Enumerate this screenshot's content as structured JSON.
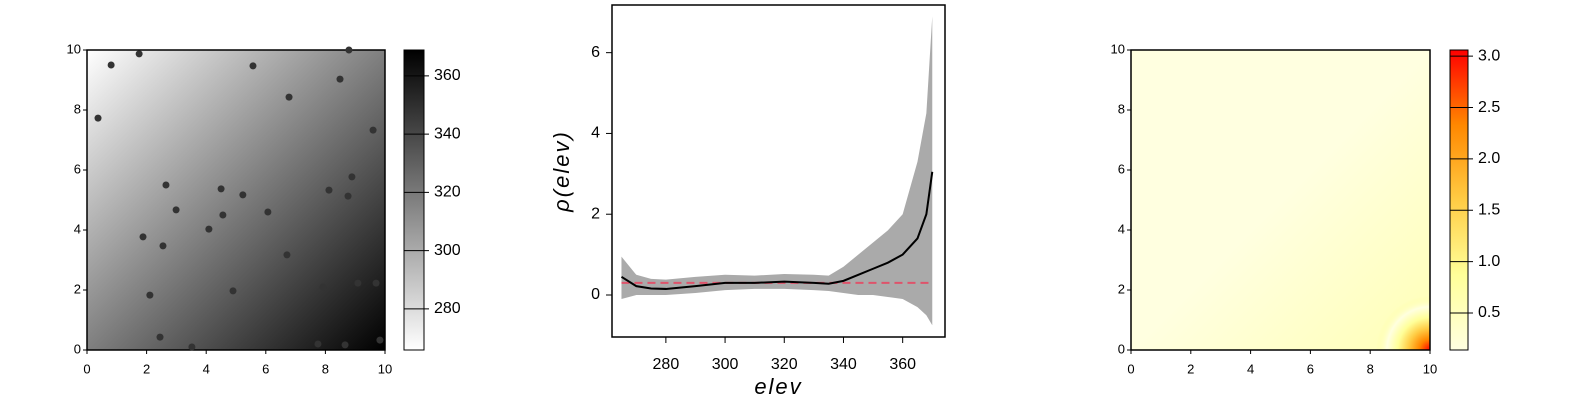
{
  "chart_data": [
    {
      "type": "scatter",
      "x": [
        0.37,
        0.81,
        1.75,
        8.79,
        5.57,
        6.78,
        8.49,
        9.6,
        2.65,
        4.5,
        5.23,
        8.89,
        8.12,
        8.76,
        2.99,
        4.56,
        6.07,
        4.09,
        1.88,
        2.55,
        6.71,
        2.11,
        4.9,
        7.92,
        9.09,
        9.7,
        2.45,
        3.52,
        7.75,
        8.66,
        9.83
      ],
      "y": [
        7.73,
        9.5,
        9.87,
        10,
        9.47,
        8.43,
        9.03,
        7.33,
        5.5,
        5.37,
        5.17,
        5.77,
        5.33,
        5.13,
        4.67,
        4.5,
        4.6,
        4.03,
        3.77,
        3.47,
        3.17,
        1.83,
        1.97,
        2.1,
        2.23,
        2.23,
        0.43,
        0.1,
        0.2,
        0.17,
        0.33
      ],
      "color": "#333333",
      "xlim": [
        0,
        10
      ],
      "ylim": [
        0,
        10
      ],
      "xticks": [
        0,
        2,
        4,
        6,
        8,
        10
      ],
      "yticks": [
        0,
        2,
        4,
        6,
        8,
        10
      ],
      "colorbar": {
        "lim": [
          265.9,
          368.9
        ],
        "ticks": [
          280,
          300,
          320,
          340,
          360
        ],
        "colors": [
          "#ffffff",
          "#000000"
        ]
      }
    },
    {
      "type": "line",
      "x": [
        265,
        270,
        275,
        280,
        290,
        300,
        310,
        320,
        330,
        335,
        340,
        345,
        350,
        355,
        360,
        365,
        368,
        370
      ],
      "series": [
        {
          "color": "#000000",
          "values": [
            0.45,
            0.22,
            0.16,
            0.15,
            0.22,
            0.3,
            0.3,
            0.33,
            0.3,
            0.28,
            0.35,
            0.5,
            0.65,
            0.8,
            1.0,
            1.4,
            2.0,
            3.05
          ]
        }
      ],
      "band": {
        "color": "#aaaaaa",
        "upper": [
          0.95,
          0.5,
          0.4,
          0.38,
          0.45,
          0.5,
          0.48,
          0.52,
          0.5,
          0.48,
          0.7,
          1.0,
          1.3,
          1.6,
          2.0,
          3.3,
          4.5,
          6.9
        ],
        "lower": [
          -0.1,
          0.0,
          0.0,
          0.0,
          0.05,
          0.12,
          0.15,
          0.15,
          0.12,
          0.1,
          0.05,
          0.0,
          0.0,
          -0.05,
          -0.1,
          -0.3,
          -0.5,
          -0.75
        ]
      },
      "reference": {
        "value": 0.3,
        "color": "#df536b"
      },
      "xlabel": "elev",
      "ylabel": "ρ(elev)",
      "xlim": [
        261.8,
        374.3
      ],
      "ylim": [
        -1.04,
        7.18
      ],
      "xticks": [
        280,
        300,
        320,
        340,
        360
      ],
      "yticks": [
        0,
        2,
        4,
        6
      ]
    },
    {
      "type": "image",
      "xlim": [
        0,
        10
      ],
      "ylim": [
        0,
        10
      ],
      "xticks": [
        0,
        2,
        4,
        6,
        8,
        10
      ],
      "yticks": [
        0,
        2,
        4,
        6,
        8,
        10
      ],
      "colorbar": {
        "lim": [
          0.14,
          3.06
        ],
        "ticks": [
          0.5,
          {
            "value": 1,
            "label": "1.0"
          },
          1.5,
          {
            "value": 2,
            "label": "2.0"
          },
          2.5,
          {
            "value": 3,
            "label": "3.0"
          }
        ],
        "colors": [
          "#ffffe0",
          "#ffff99",
          "#ffcc44",
          "#ff8800",
          "#ff0000"
        ]
      }
    }
  ]
}
